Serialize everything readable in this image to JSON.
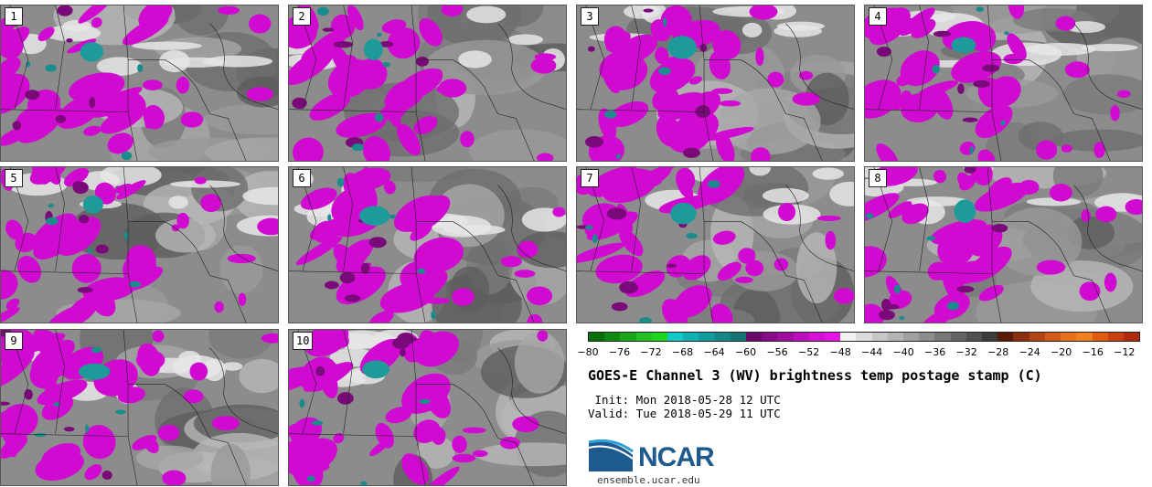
{
  "panels": [
    {
      "label": "1"
    },
    {
      "label": "2"
    },
    {
      "label": "3"
    },
    {
      "label": "4"
    },
    {
      "label": "5"
    },
    {
      "label": "6"
    },
    {
      "label": "7"
    },
    {
      "label": "8"
    },
    {
      "label": "9"
    },
    {
      "label": "10"
    }
  ],
  "colorbar": {
    "unit": "C",
    "ticks": [
      "-80",
      "-76",
      "-72",
      "-68",
      "-64",
      "-60",
      "-56",
      "-52",
      "-48",
      "-44",
      "-40",
      "-36",
      "-32",
      "-28",
      "-24",
      "-20",
      "-16",
      "-12"
    ],
    "range": [
      -80,
      -10
    ],
    "colors": [
      "#0a6e0a",
      "#118a11",
      "#1aa61a",
      "#22c022",
      "#1fd61f",
      "#10c8c8",
      "#12b0b0",
      "#139c9c",
      "#148888",
      "#157474",
      "#6a0a6a",
      "#880c88",
      "#a00ea0",
      "#bb10bb",
      "#d412d4",
      "#e415e4",
      "#f2f2f2",
      "#dcdcdc",
      "#c8c8c8",
      "#b4b4b4",
      "#a0a0a0",
      "#8c8c8c",
      "#787878",
      "#646464",
      "#505050",
      "#3c3c3c",
      "#5a1a0a",
      "#8a2e0e",
      "#b04412",
      "#d05a16",
      "#e8701a",
      "#f08020",
      "#e05a10",
      "#c84010",
      "#b02a0e"
    ]
  },
  "title": "GOES-E Channel 3 (WV) brightness temp postage stamp (C)",
  "init_line": " Init: Mon 2018-05-28 12 UTC",
  "valid_line": "Valid: Tue 2018-05-29 11 UTC",
  "logo": {
    "text": "NCAR",
    "website": "ensemble.ucar.edu"
  }
}
